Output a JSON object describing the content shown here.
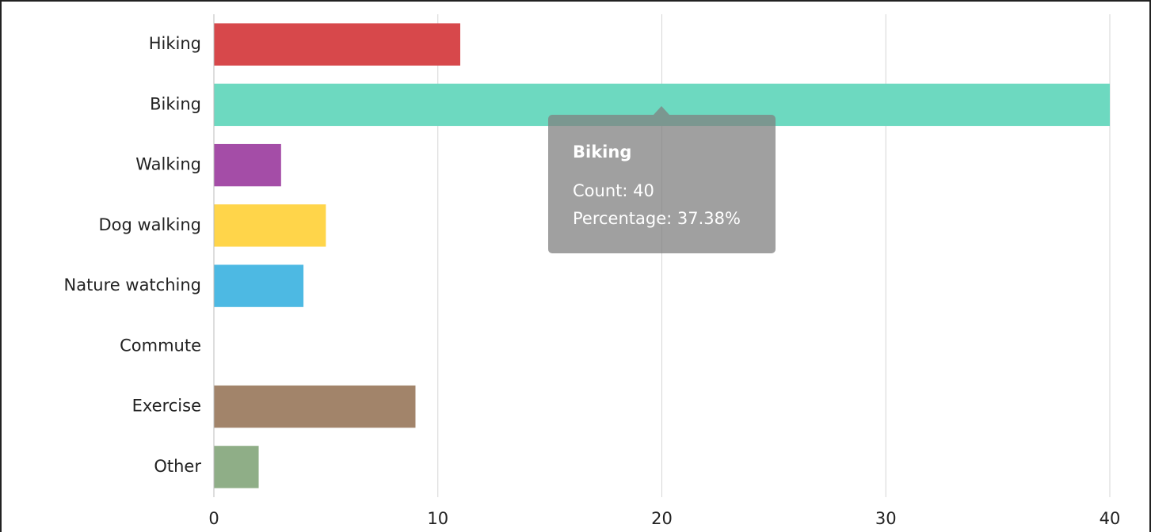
{
  "chart_data": {
    "type": "hbar",
    "categories": [
      "Hiking",
      "Biking",
      "Walking",
      "Dog walking",
      "Nature watching",
      "Commute",
      "Exercise",
      "Other"
    ],
    "values": [
      11,
      40,
      3,
      5,
      4,
      0,
      9,
      2
    ],
    "colors": [
      "#d7484b",
      "#6dd9c0",
      "#a44da7",
      "#ffd54a",
      "#4db9e3",
      "#999999",
      "#a2846a",
      "#8fae87"
    ],
    "xlim": [
      0,
      40
    ],
    "xticks": [
      0,
      10,
      20,
      30,
      40
    ],
    "grid": true,
    "tooltip": {
      "title": "Biking",
      "lines": [
        "Count: 40",
        "Percentage: 37.38%"
      ]
    }
  }
}
